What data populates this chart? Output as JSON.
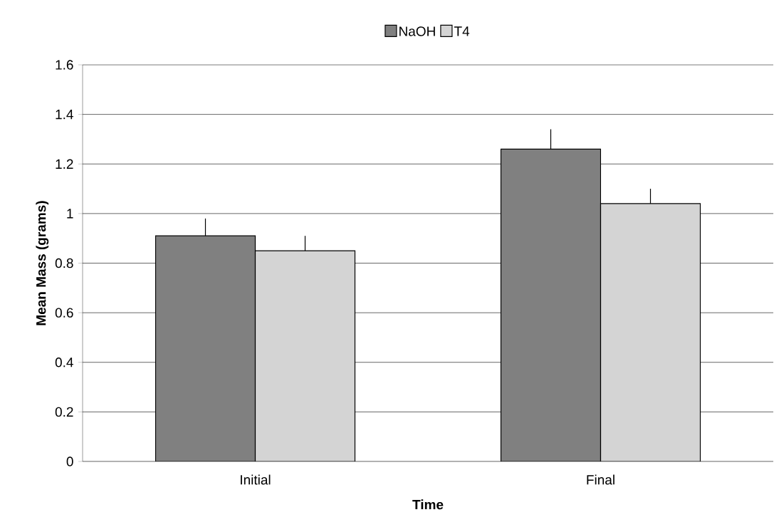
{
  "chart_data": {
    "type": "bar",
    "xlabel": "Time",
    "ylabel": "Mean Mass (grams)",
    "categories": [
      "Initial",
      "Final"
    ],
    "series": [
      {
        "name": "NaOH",
        "color": "#808080",
        "values": [
          0.91,
          1.26
        ],
        "errors": [
          [
            0.91,
            0.98
          ],
          [
            1.26,
            1.34
          ]
        ]
      },
      {
        "name": "T4",
        "color": "#d4d4d4",
        "values": [
          0.85,
          1.04
        ],
        "errors": [
          [
            0.85,
            0.91
          ],
          [
            1.04,
            1.1
          ]
        ]
      }
    ],
    "ylim": [
      0,
      1.6
    ],
    "yticks": [
      0,
      0.2,
      0.4,
      0.6,
      0.8,
      1,
      1.2,
      1.4,
      1.6
    ],
    "grid": "y",
    "legend": "top"
  }
}
